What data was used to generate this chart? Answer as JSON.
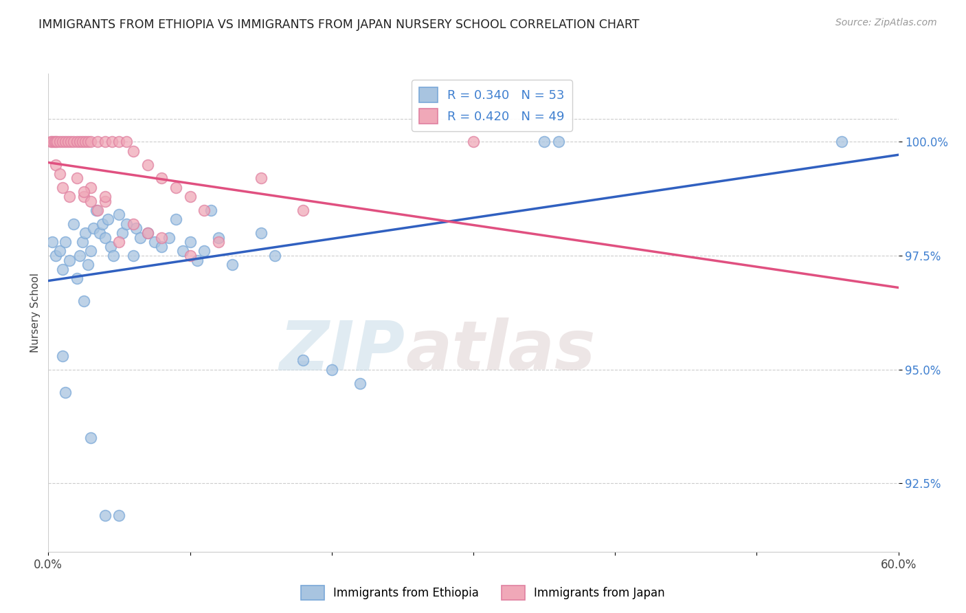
{
  "title": "IMMIGRANTS FROM ETHIOPIA VS IMMIGRANTS FROM JAPAN NURSERY SCHOOL CORRELATION CHART",
  "source": "Source: ZipAtlas.com",
  "ylabel": "Nursery School",
  "yticks": [
    100.0,
    97.5,
    95.0,
    92.5
  ],
  "ytick_labels": [
    "100.0%",
    "97.5%",
    "95.0%",
    "92.5%"
  ],
  "xmin": 0.0,
  "xmax": 60.0,
  "ymin": 91.0,
  "ymax": 101.5,
  "legend_ethiopia": "Immigrants from Ethiopia",
  "legend_japan": "Immigrants from Japan",
  "R_ethiopia": 0.34,
  "N_ethiopia": 53,
  "R_japan": 0.42,
  "N_japan": 49,
  "color_ethiopia": "#a8c4e0",
  "color_japan": "#f0a8b8",
  "line_color_ethiopia": "#3060c0",
  "line_color_japan": "#e05080",
  "marker_edge_ethiopia": "#7aa8d8",
  "marker_edge_japan": "#e080a0",
  "ethiopia_x": [
    0.3,
    0.5,
    0.8,
    1.0,
    1.2,
    1.5,
    1.8,
    2.0,
    2.2,
    2.4,
    2.6,
    2.8,
    3.0,
    3.2,
    3.4,
    3.6,
    3.8,
    4.0,
    4.2,
    4.4,
    4.6,
    5.0,
    5.2,
    5.5,
    6.0,
    6.2,
    6.5,
    7.0,
    7.5,
    8.0,
    8.5,
    9.0,
    9.5,
    10.0,
    10.5,
    11.0,
    11.5,
    12.0,
    13.0,
    15.0,
    16.0,
    18.0,
    20.0,
    22.0,
    1.0,
    1.2,
    2.5,
    3.0,
    4.0,
    5.0,
    35.0,
    36.0,
    56.0
  ],
  "ethiopia_y": [
    97.8,
    97.5,
    97.6,
    97.2,
    97.8,
    97.4,
    98.2,
    97.0,
    97.5,
    97.8,
    98.0,
    97.3,
    97.6,
    98.1,
    98.5,
    98.0,
    98.2,
    97.9,
    98.3,
    97.7,
    97.5,
    98.4,
    98.0,
    98.2,
    97.5,
    98.1,
    97.9,
    98.0,
    97.8,
    97.7,
    97.9,
    98.3,
    97.6,
    97.8,
    97.4,
    97.6,
    98.5,
    97.9,
    97.3,
    98.0,
    97.5,
    95.2,
    95.0,
    94.7,
    95.3,
    94.5,
    96.5,
    93.5,
    91.8,
    91.8,
    100.0,
    100.0,
    100.0
  ],
  "japan_x": [
    0.2,
    0.3,
    0.4,
    0.5,
    0.6,
    0.8,
    1.0,
    1.2,
    1.4,
    1.6,
    1.8,
    2.0,
    2.2,
    2.4,
    2.6,
    2.8,
    3.0,
    3.5,
    4.0,
    4.5,
    5.0,
    5.5,
    6.0,
    7.0,
    8.0,
    9.0,
    10.0,
    11.0,
    15.0,
    18.0,
    2.5,
    3.0,
    4.0,
    0.5,
    0.8,
    1.0,
    1.5,
    2.0,
    2.5,
    3.0,
    3.5,
    4.0,
    5.0,
    6.0,
    7.0,
    8.0,
    10.0,
    12.0,
    30.0
  ],
  "japan_y": [
    100.0,
    100.0,
    100.0,
    100.0,
    100.0,
    100.0,
    100.0,
    100.0,
    100.0,
    100.0,
    100.0,
    100.0,
    100.0,
    100.0,
    100.0,
    100.0,
    100.0,
    100.0,
    100.0,
    100.0,
    100.0,
    100.0,
    99.8,
    99.5,
    99.2,
    99.0,
    98.8,
    98.5,
    99.2,
    98.5,
    98.8,
    99.0,
    98.7,
    99.5,
    99.3,
    99.0,
    98.8,
    99.2,
    98.9,
    98.7,
    98.5,
    98.8,
    97.8,
    98.2,
    98.0,
    97.9,
    97.5,
    97.8,
    100.0
  ],
  "watermark_zip": "ZIP",
  "watermark_atlas": "atlas",
  "background_color": "#ffffff",
  "grid_color": "#cccccc"
}
